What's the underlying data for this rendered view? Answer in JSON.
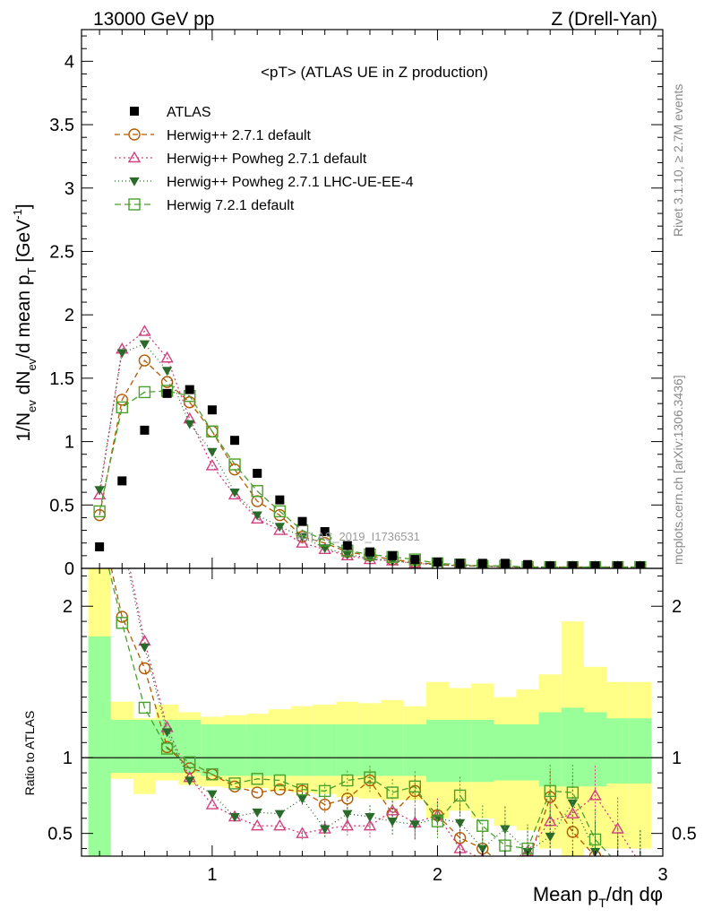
{
  "header": {
    "left": "13000 GeV pp",
    "right": "Z (Drell-Yan)"
  },
  "side_labels": {
    "rivet": "Rivet 3.1.10, ≥ 2.7M events",
    "mcplots": "mcplots.cern.ch [arXiv:1306.3436]"
  },
  "watermark": "ATLAS_2019_I1736531",
  "chart_data": {
    "type": "scatter",
    "title": "<pT> (ATLAS UE in Z production)",
    "ylabel_html": "1/N<sub>ev</sub> dN<sub>ev</sub>/d mean p<sub>T</sub> [GeV<sup>-1</sup>]",
    "ratio_ylabel": "Ratio to ATLAS",
    "xlabel": "Mean pT/dη dφ",
    "xlim": [
      0.42,
      3.0
    ],
    "ylim": [
      0,
      4.25
    ],
    "ratio_ylim": [
      0.35,
      2.25
    ],
    "x_ticks": [
      "1",
      "2",
      "3"
    ],
    "y_ticks": [
      "0",
      "0.5",
      "1",
      "1.5",
      "2",
      "2.5",
      "3",
      "3.5",
      "4"
    ],
    "ratio_y_ticks": [
      "0.5",
      "1",
      "2"
    ],
    "legend_position": "top-left",
    "x": [
      0.5,
      0.6,
      0.7,
      0.8,
      0.9,
      1.0,
      1.1,
      1.2,
      1.3,
      1.4,
      1.5,
      1.6,
      1.7,
      1.8,
      1.9,
      2.0,
      2.1,
      2.2,
      2.3,
      2.4,
      2.5,
      2.6,
      2.7,
      2.8,
      2.9
    ],
    "data": {
      "name": "ATLAS",
      "color": "#000000",
      "values": [
        0.17,
        0.69,
        1.09,
        1.38,
        1.41,
        1.25,
        1.01,
        0.75,
        0.54,
        0.37,
        0.29,
        0.18,
        0.13,
        0.1,
        0.07,
        0.05,
        0.04,
        0.04,
        0.04,
        0.03,
        0.02,
        0.02,
        0.02,
        0.02,
        0.02
      ]
    },
    "series": [
      {
        "name": "Herwig++ 2.7.1 default",
        "color": "#b35900",
        "marker": "circle-open",
        "dash": "6,4",
        "values": [
          0.42,
          1.33,
          1.64,
          1.47,
          1.31,
          1.08,
          0.78,
          0.53,
          0.42,
          0.25,
          0.2,
          0.13,
          0.1,
          0.07,
          0.05,
          0.03,
          0.02,
          0.02,
          0.01,
          0.01,
          0.01,
          0.01,
          0.01,
          0.01,
          0.01
        ],
        "ratio": [
          2.6,
          1.93,
          1.59,
          1.07,
          0.93,
          0.89,
          0.81,
          0.77,
          0.79,
          0.78,
          0.69,
          0.73,
          0.85,
          0.63,
          0.78,
          0.62,
          0.47,
          0.4,
          0.28,
          0.3,
          0.74,
          0.51,
          0.35,
          0.3,
          0.3
        ]
      },
      {
        "name": "Herwig++ Powheg 2.7.1 default",
        "color": "#d04080",
        "marker": "triangle-open",
        "dash": "2,3",
        "values": [
          0.58,
          1.73,
          1.87,
          1.66,
          1.18,
          0.81,
          0.58,
          0.39,
          0.3,
          0.2,
          0.15,
          0.1,
          0.07,
          0.06,
          0.04,
          0.03,
          0.02,
          0.02,
          0.01,
          0.01,
          0.01,
          0.01,
          0.01,
          0.01,
          0.01
        ],
        "ratio": [
          3.0,
          2.5,
          1.77,
          1.2,
          0.87,
          0.69,
          0.61,
          0.55,
          0.55,
          0.5,
          0.53,
          0.55,
          0.55,
          0.65,
          0.57,
          0.62,
          0.4,
          0.33,
          0.3,
          0.38,
          0.58,
          0.63,
          0.75,
          0.53,
          0.3
        ]
      },
      {
        "name": "Herwig++ Powheg 2.7.1 LHC-UE-EE-4",
        "color": "#2a6a2a",
        "marker": "triangle-down-filled",
        "dash": "1,3",
        "values": [
          0.62,
          1.7,
          1.77,
          1.56,
          1.14,
          0.92,
          0.6,
          0.42,
          0.33,
          0.25,
          0.16,
          0.11,
          0.08,
          0.06,
          0.04,
          0.03,
          0.02,
          0.02,
          0.01,
          0.01,
          0.01,
          0.01,
          0.01,
          0.01,
          0.01
        ],
        "ratio": [
          3.0,
          2.45,
          1.73,
          1.17,
          0.85,
          0.76,
          0.61,
          0.64,
          0.63,
          0.73,
          0.53,
          0.63,
          0.61,
          0.58,
          0.56,
          0.6,
          0.57,
          0.4,
          0.53,
          0.38,
          0.48,
          0.7,
          0.38,
          0.3,
          0.3
        ]
      },
      {
        "name": "Herwig 7.2.1 default",
        "color": "#4aa02c",
        "marker": "square-open",
        "dash": "7,4",
        "values": [
          0.45,
          1.27,
          1.39,
          1.4,
          1.36,
          1.08,
          0.82,
          0.61,
          0.45,
          0.3,
          0.22,
          0.14,
          0.11,
          0.09,
          0.07,
          0.04,
          0.03,
          0.02,
          0.02,
          0.01,
          0.01,
          0.01,
          0.01,
          0.01,
          0.01
        ],
        "ratio": [
          2.5,
          1.89,
          1.33,
          1.06,
          0.97,
          0.89,
          0.83,
          0.86,
          0.85,
          0.79,
          0.78,
          0.85,
          0.87,
          0.77,
          0.81,
          0.58,
          0.75,
          0.55,
          0.42,
          0.4,
          0.78,
          0.77,
          0.46,
          0.3,
          0.3
        ]
      }
    ],
    "ratio_bands": {
      "inner_color": "#99ff99",
      "outer_color": "#ffff88",
      "inner_up": [
        1.8,
        1.25,
        1.25,
        1.25,
        1.25,
        1.22,
        1.22,
        1.22,
        1.22,
        1.22,
        1.22,
        1.22,
        1.22,
        1.22,
        1.22,
        1.25,
        1.25,
        1.25,
        1.22,
        1.22,
        1.3,
        1.33,
        1.3,
        1.26,
        1.26
      ],
      "inner_down": [
        0.3,
        0.9,
        0.9,
        0.9,
        0.9,
        0.88,
        0.88,
        0.88,
        0.88,
        0.88,
        0.88,
        0.88,
        0.88,
        0.88,
        0.88,
        0.84,
        0.84,
        0.84,
        0.85,
        0.85,
        0.81,
        0.81,
        0.81,
        0.83,
        0.83
      ],
      "outer_up": [
        2.3,
        1.37,
        1.26,
        1.35,
        1.3,
        1.27,
        1.28,
        1.29,
        1.32,
        1.34,
        1.35,
        1.37,
        1.36,
        1.38,
        1.34,
        1.5,
        1.46,
        1.49,
        1.4,
        1.45,
        1.55,
        1.9,
        1.6,
        1.5,
        1.5
      ],
      "outer_down": [
        0.3,
        0.86,
        0.76,
        0.85,
        0.82,
        0.81,
        0.8,
        0.8,
        0.78,
        0.77,
        0.76,
        0.74,
        0.73,
        0.72,
        0.72,
        0.6,
        0.65,
        0.6,
        0.55,
        0.52,
        0.4,
        0.3,
        0.4,
        0.4,
        0.4
      ]
    }
  }
}
